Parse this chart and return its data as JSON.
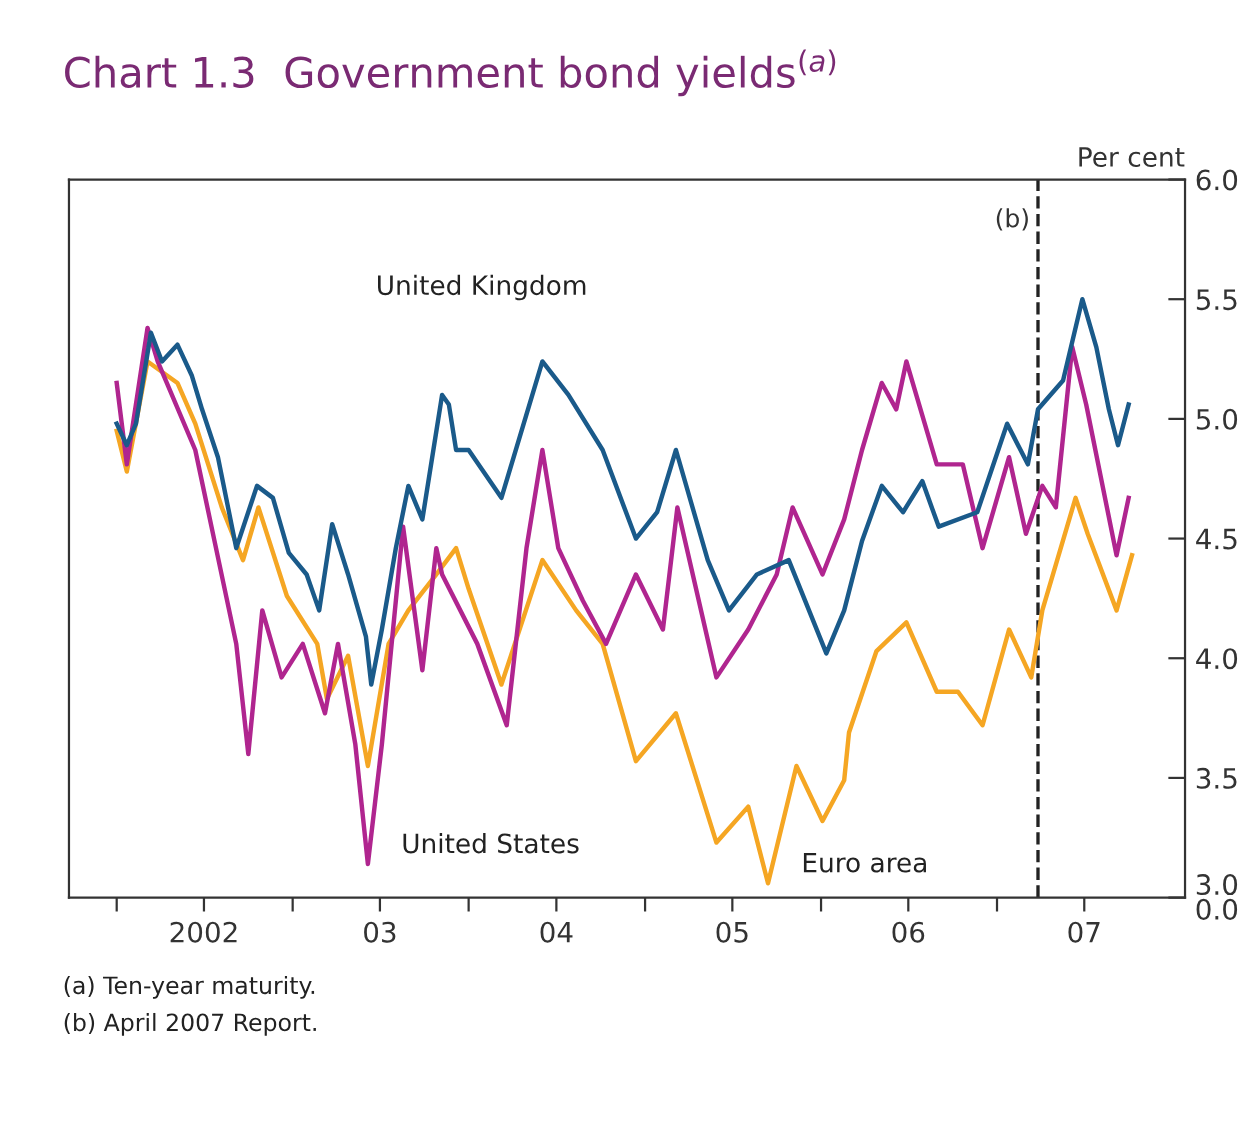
{
  "chart_data": {
    "type": "line",
    "title": "Chart 1.3  Government bond yields$^{(a)}$",
    "ylabel": "Per cent",
    "xlim": [
      "2001-09-24",
      "2008-01-26"
    ],
    "ylim": [
      3.0,
      6.0
    ],
    "xticks": [
      {
        "value": "2002-01-01",
        "label": null
      },
      {
        "value": "2002-07-01",
        "label": "2002"
      },
      {
        "value": "2003-01-01",
        "label": null
      },
      {
        "value": "2003-07-01",
        "label": "03"
      },
      {
        "value": "2004-01-01",
        "label": null
      },
      {
        "value": "2004-07-01",
        "label": "04"
      },
      {
        "value": "2005-01-01",
        "label": null
      },
      {
        "value": "2005-07-01",
        "label": "05"
      },
      {
        "value": "2006-01-01",
        "label": null
      },
      {
        "value": "2006-07-01",
        "label": "06"
      },
      {
        "value": "2007-01-01",
        "label": null
      },
      {
        "value": "2007-07-01",
        "label": "07"
      }
    ],
    "yticks": [
      {
        "value": 3.0,
        "label": "3.0\n0.0"
      },
      {
        "value": 3.5,
        "label": "3.5"
      },
      {
        "value": 4.0,
        "label": "4.0"
      },
      {
        "value": 4.5,
        "label": "4.5"
      },
      {
        "value": 5.0,
        "label": "5.0"
      },
      {
        "value": 5.5,
        "label": "5.5"
      },
      {
        "value": 6.0,
        "label": "6.0"
      }
    ],
    "grid": false,
    "legend": false,
    "line_style": "solid",
    "marker": "none",
    "series": [
      {
        "name": "United Kingdom",
        "color": "#1a5a8a",
        "x": [
          "2002-01-01",
          "2002-01-22",
          "2002-02-10",
          "2002-03-13",
          "2002-04-05",
          "2002-05-07",
          "2002-06-06",
          "2002-06-27",
          "2002-07-30",
          "2002-09-06",
          "2002-10-19",
          "2002-11-21",
          "2002-12-24",
          "2003-01-30",
          "2003-02-25",
          "2003-03-24",
          "2003-04-26",
          "2003-06-02",
          "2003-06-13",
          "2003-07-05",
          "2003-08-03",
          "2003-08-29",
          "2003-09-27",
          "2003-11-07",
          "2003-11-21",
          "2003-12-06",
          "2004-01-01",
          "2004-03-09",
          "2004-06-02",
          "2004-07-26",
          "2004-10-05",
          "2004-12-13",
          "2005-01-26",
          "2005-03-06",
          "2005-05-11",
          "2005-06-24",
          "2005-08-21",
          "2005-10-26",
          "2006-01-12",
          "2006-02-18",
          "2006-03-27",
          "2006-05-07",
          "2006-06-20",
          "2006-07-30",
          "2006-09-02",
          "2006-11-21",
          "2007-01-22",
          "2007-03-06",
          "2007-03-27",
          "2007-05-18",
          "2007-06-27",
          "2007-07-26",
          "2007-08-21",
          "2007-09-09",
          "2007-10-01"
        ],
        "values": [
          4.98,
          4.89,
          4.98,
          5.36,
          5.24,
          5.31,
          5.18,
          5.04,
          4.84,
          4.46,
          4.72,
          4.67,
          4.44,
          4.35,
          4.2,
          4.56,
          4.35,
          4.09,
          3.89,
          4.12,
          4.46,
          4.72,
          4.58,
          5.1,
          5.06,
          4.87,
          4.87,
          4.67,
          5.24,
          5.1,
          4.87,
          4.5,
          4.61,
          4.87,
          4.41,
          4.2,
          4.35,
          4.41,
          4.02,
          4.2,
          4.49,
          4.72,
          4.61,
          4.74,
          4.55,
          4.61,
          4.98,
          4.81,
          5.04,
          5.16,
          5.5,
          5.3,
          5.04,
          4.89,
          5.06
        ]
      },
      {
        "name": "United States",
        "color": "#b0258f",
        "x": [
          "2002-01-01",
          "2002-01-22",
          "2002-03-06",
          "2002-03-27",
          "2002-06-13",
          "2002-07-26",
          "2002-09-06",
          "2002-10-01",
          "2002-10-30",
          "2002-12-09",
          "2003-01-22",
          "2003-03-09",
          "2003-04-05",
          "2003-05-11",
          "2003-06-06",
          "2003-07-05",
          "2003-08-18",
          "2003-09-27",
          "2003-10-26",
          "2003-11-07",
          "2004-01-19",
          "2004-03-20",
          "2004-04-30",
          "2004-06-02",
          "2004-07-05",
          "2004-08-25",
          "2004-10-12",
          "2004-12-13",
          "2005-02-07",
          "2005-03-09",
          "2005-05-29",
          "2005-08-03",
          "2005-10-01",
          "2005-11-03",
          "2006-01-04",
          "2006-02-18",
          "2006-03-27",
          "2006-05-07",
          "2006-06-06",
          "2006-06-27",
          "2006-08-29",
          "2006-10-22",
          "2006-12-02",
          "2007-01-26",
          "2007-03-02",
          "2007-04-05",
          "2007-05-03",
          "2007-06-06",
          "2007-07-05",
          "2007-09-06",
          "2007-10-01"
        ],
        "values": [
          5.15,
          4.81,
          5.38,
          5.24,
          4.87,
          4.46,
          4.06,
          3.6,
          4.2,
          3.92,
          4.06,
          3.77,
          4.06,
          3.64,
          3.14,
          3.64,
          4.55,
          3.95,
          4.46,
          4.35,
          4.06,
          3.72,
          4.46,
          4.87,
          4.46,
          4.24,
          4.06,
          4.35,
          4.12,
          4.63,
          3.92,
          4.12,
          4.35,
          4.63,
          4.35,
          4.58,
          4.87,
          5.15,
          5.04,
          5.24,
          4.81,
          4.81,
          4.46,
          4.84,
          4.52,
          4.72,
          4.63,
          5.3,
          5.06,
          4.43,
          4.67
        ]
      },
      {
        "name": "Euro area",
        "color": "#f5a623",
        "x": [
          "2002-01-01",
          "2002-01-22",
          "2002-03-06",
          "2002-05-07",
          "2002-06-13",
          "2002-08-07",
          "2002-09-20",
          "2002-10-22",
          "2002-12-20",
          "2003-02-21",
          "2003-03-13",
          "2003-04-26",
          "2003-06-06",
          "2003-07-19",
          "2003-08-29",
          "2003-10-26",
          "2003-12-06",
          "2004-01-01",
          "2004-03-09",
          "2004-06-02",
          "2004-08-11",
          "2004-10-05",
          "2004-12-13",
          "2005-03-06",
          "2005-05-29",
          "2005-08-03",
          "2005-09-13",
          "2005-11-11",
          "2006-01-04",
          "2006-02-18",
          "2006-02-28",
          "2006-04-26",
          "2006-06-27",
          "2006-08-29",
          "2006-10-12",
          "2006-12-02",
          "2007-01-26",
          "2007-03-13",
          "2007-04-05",
          "2007-06-13",
          "2007-07-08",
          "2007-09-06",
          "2007-10-08"
        ],
        "values": [
          4.95,
          4.78,
          5.24,
          5.15,
          4.98,
          4.63,
          4.41,
          4.63,
          4.26,
          4.06,
          3.83,
          4.01,
          3.55,
          4.06,
          4.2,
          4.35,
          4.46,
          4.29,
          3.89,
          4.41,
          4.2,
          4.06,
          3.57,
          3.77,
          3.23,
          3.38,
          3.06,
          3.55,
          3.32,
          3.49,
          3.69,
          4.03,
          4.15,
          3.86,
          3.86,
          3.72,
          4.12,
          3.92,
          4.2,
          4.67,
          4.52,
          4.2,
          4.43
        ]
      }
    ],
    "ref_lines": [
      {
        "axis": "x",
        "value": "2007-03-27",
        "label": "(b)",
        "color": "#222222",
        "line_style": "dashed"
      }
    ],
    "annotations": [
      "(a) Ten-year maturity.",
      "(b) April 2007 Report."
    ]
  }
}
